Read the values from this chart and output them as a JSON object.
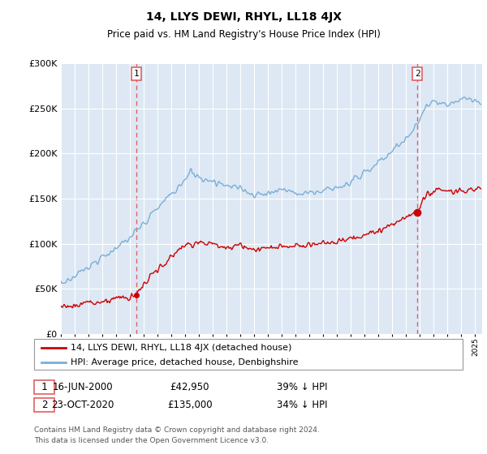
{
  "title": "14, LLYS DEWI, RHYL, LL18 4JX",
  "subtitle": "Price paid vs. HM Land Registry's House Price Index (HPI)",
  "footer": "Contains HM Land Registry data © Crown copyright and database right 2024.\nThis data is licensed under the Open Government Licence v3.0.",
  "legend_line1": "14, LLYS DEWI, RHYL, LL18 4JX (detached house)",
  "legend_line2": "HPI: Average price, detached house, Denbighshire",
  "sale1_date": "16-JUN-2000",
  "sale1_price": "£42,950",
  "sale1_hpi": "39% ↓ HPI",
  "sale1_year": 2000.46,
  "sale1_value": 42950,
  "sale2_date": "23-OCT-2020",
  "sale2_price": "£135,000",
  "sale2_hpi": "34% ↓ HPI",
  "sale2_year": 2020.81,
  "sale2_value": 135000,
  "ylim": [
    0,
    300000
  ],
  "xlim_start": 1995.0,
  "xlim_end": 2025.5,
  "bg_color": "#dde8f4",
  "red_color": "#cc0000",
  "blue_color": "#7aaed6",
  "grid_color": "#ffffff",
  "dashed_color": "#e06060"
}
